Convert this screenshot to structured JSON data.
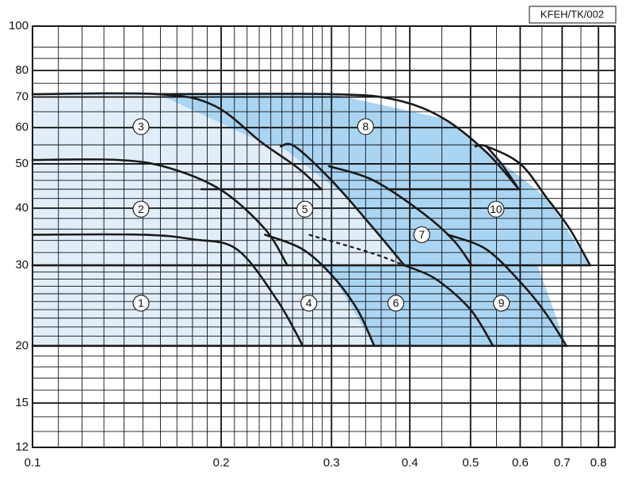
{
  "chart_data": {
    "type": "line",
    "x_scale": "log",
    "y_scale": "log",
    "xlim": [
      0.1,
      0.85
    ],
    "ylim": [
      12,
      100
    ],
    "xticks": [
      0.1,
      0.2,
      0.3,
      0.4,
      0.5,
      0.6,
      0.7,
      0.8
    ],
    "yticks": [
      12,
      15,
      20,
      30,
      40,
      50,
      60,
      70,
      80,
      100
    ],
    "xgrid_minor": [
      0.11,
      0.12,
      0.13,
      0.14,
      0.15,
      0.16,
      0.17,
      0.18,
      0.19,
      0.21,
      0.22,
      0.23,
      0.24,
      0.25,
      0.26,
      0.27,
      0.28,
      0.29,
      0.32,
      0.34,
      0.36,
      0.38,
      0.45,
      0.55,
      0.65,
      0.75
    ],
    "ygrid_minor": [
      13,
      14,
      16,
      17,
      18,
      19,
      21,
      22,
      23,
      24,
      25,
      26,
      27,
      28,
      29,
      32,
      34,
      36,
      38,
      42,
      44,
      46,
      48,
      55,
      65,
      75,
      85,
      90
    ],
    "code": "KFEH/TK/002",
    "grid_color": "#111111",
    "curve_color": "#1a1a1a",
    "areas": [
      {
        "color": "#e1eefa",
        "x": [
          0.1,
          0.1,
          0.159,
          0.232,
          0.249,
          0.319,
          0.392,
          0.29,
          0.302,
          0.351
        ],
        "y": [
          20,
          71,
          71,
          55.7,
          54.6,
          42.1,
          30,
          30,
          28.3,
          20
        ]
      },
      {
        "color": "#a9d5f3",
        "x": [
          0.159,
          0.301,
          0.453,
          0.52,
          0.662,
          0.776,
          0.64,
          0.711,
          0.351,
          0.302,
          0.29,
          0.392,
          0.319,
          0.249,
          0.232
        ],
        "y": [
          71,
          71,
          62.8,
          54.6,
          42.1,
          30,
          30,
          20,
          20,
          28.3,
          30,
          30,
          42.1,
          54.6,
          55.7
        ]
      }
    ],
    "curves": [
      {
        "x": [
          0.1,
          0.15,
          0.18,
          0.212,
          0.246,
          0.27
        ],
        "y": [
          35,
          35,
          34.2,
          32.5,
          25.1,
          20
        ]
      },
      {
        "x": [
          0.1,
          0.137,
          0.165,
          0.2,
          0.235,
          0.255
        ],
        "y": [
          51,
          51,
          49,
          43.8,
          36,
          30
        ]
      },
      {
        "x": [
          0.1,
          0.159,
          0.195,
          0.232,
          0.265,
          0.289
        ],
        "y": [
          71,
          71,
          67,
          55.7,
          49,
          44
        ]
      },
      {
        "x": [
          0.235,
          0.27,
          0.302,
          0.33,
          0.351
        ],
        "y": [
          35,
          32.5,
          28.3,
          24,
          20
        ]
      },
      {
        "x": [
          0.249,
          0.262,
          0.3,
          0.345,
          0.392
        ],
        "y": [
          54.6,
          54.6,
          46,
          37,
          30
        ]
      },
      {
        "x": [
          0.297,
          0.35,
          0.42,
          0.47,
          0.502
        ],
        "y": [
          49.4,
          46,
          39,
          34,
          30
        ]
      },
      {
        "x": [
          0.392,
          0.44,
          0.5,
          0.543
        ],
        "y": [
          30,
          28,
          24,
          20
        ]
      },
      {
        "x": [
          0.159,
          0.301,
          0.38,
          0.453,
          0.53,
          0.597
        ],
        "y": [
          71,
          71,
          69,
          62.8,
          53,
          44
        ]
      },
      {
        "x": [
          0.46,
          0.53,
          0.606,
          0.66,
          0.711
        ],
        "y": [
          35,
          32.5,
          27.2,
          23.5,
          20
        ]
      },
      {
        "x": [
          0.509,
          0.53,
          0.6,
          0.662,
          0.72,
          0.776
        ],
        "y": [
          54.6,
          54.6,
          50,
          42.1,
          36,
          30
        ]
      },
      {
        "x": [
          0.53,
          0.56,
          0.597
        ],
        "y": [
          54.6,
          50,
          44
        ]
      },
      {
        "x": [
          0.186,
          0.289
        ],
        "y": [
          44,
          44
        ]
      },
      {
        "x": [
          0.369,
          0.597
        ],
        "y": [
          44,
          44
        ]
      },
      {
        "x": [
          0.1,
          0.776
        ],
        "y": [
          30,
          30
        ]
      },
      {
        "x": [
          0.1,
          0.711
        ],
        "y": [
          20,
          20
        ]
      },
      {
        "x": [
          0.276,
          0.348,
          0.392
        ],
        "y": [
          35,
          31.9,
          30
        ],
        "dashed": true
      }
    ],
    "labels": [
      {
        "text": "1",
        "x": 0.149,
        "y": 24.8
      },
      {
        "text": "2",
        "x": 0.149,
        "y": 39.8
      },
      {
        "text": "3",
        "x": 0.149,
        "y": 60.3
      },
      {
        "text": "4",
        "x": 0.276,
        "y": 24.8
      },
      {
        "text": "5",
        "x": 0.272,
        "y": 39.8
      },
      {
        "text": "6",
        "x": 0.38,
        "y": 24.8
      },
      {
        "text": "7",
        "x": 0.418,
        "y": 35
      },
      {
        "text": "8",
        "x": 0.34,
        "y": 60.3
      },
      {
        "text": "9",
        "x": 0.56,
        "y": 24.8
      },
      {
        "text": "10",
        "x": 0.549,
        "y": 39.8
      }
    ]
  }
}
